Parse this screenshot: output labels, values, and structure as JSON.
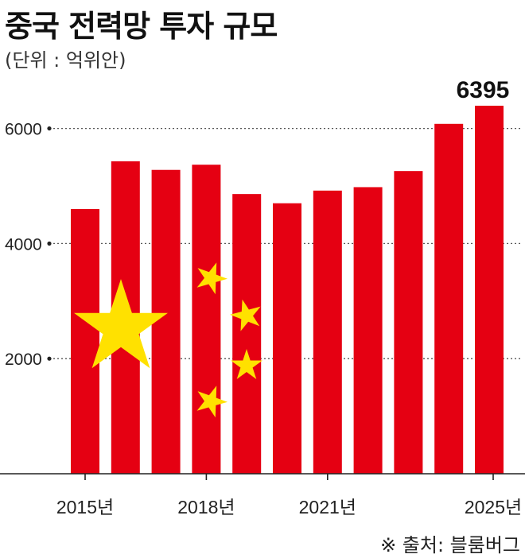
{
  "header": {
    "title": "중국 전력망 투자 규모",
    "unit": "(단위 : 억위안)"
  },
  "footer": {
    "source": "※ 출처: 블룸버그"
  },
  "colors": {
    "bar": "#e50012",
    "star": "#ffe100",
    "axis": "#222222",
    "grid": "#555555"
  },
  "chart_data": {
    "type": "bar",
    "categories": [
      "2015",
      "2016",
      "2017",
      "2018",
      "2019",
      "2020",
      "2021",
      "2022",
      "2023",
      "2024",
      "2025"
    ],
    "values": [
      4600,
      5430,
      5280,
      5370,
      4860,
      4700,
      4920,
      4980,
      5260,
      6080,
      6395
    ],
    "x_tick_labels": [
      {
        "index": 0,
        "label": "2015년"
      },
      {
        "index": 3,
        "label": "2018년"
      },
      {
        "index": 6,
        "label": "2021년"
      },
      {
        "index": 10,
        "label": "2025년"
      }
    ],
    "y_ticks": [
      2000,
      4000,
      6000
    ],
    "ylim": [
      0,
      6800
    ],
    "grid": true,
    "annotations": [
      {
        "index": 10,
        "label": "6395"
      }
    ],
    "decoration": "star-pattern-overlay"
  }
}
